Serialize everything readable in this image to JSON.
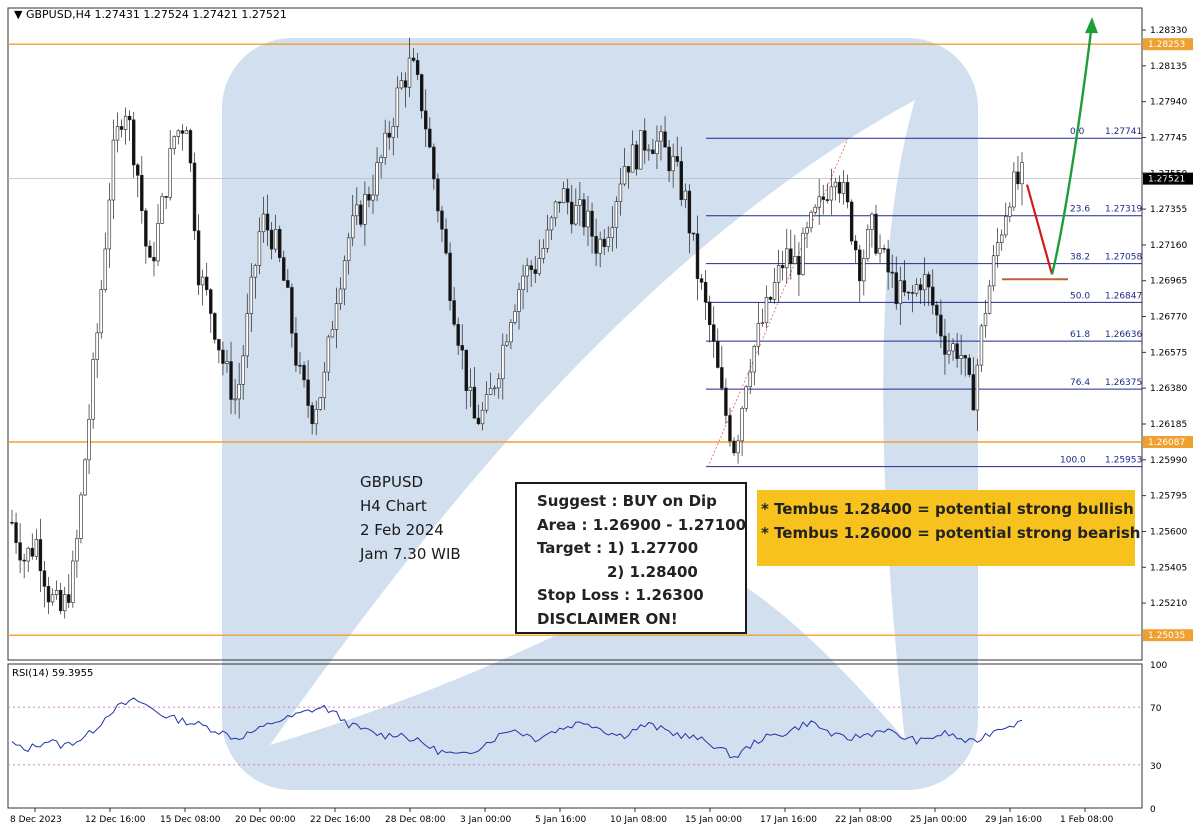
{
  "header": {
    "symbol_line": "GBPUSD,H4  1.27431 1.27524 1.27421 1.27521"
  },
  "info_box": {
    "lines": [
      "GBPUSD",
      "H4 Chart",
      "2 Feb 2024",
      "Jam 7.30 WIB"
    ]
  },
  "suggest_box": {
    "line1": "Suggest : BUY on Dip",
    "line2": "Area : 1.26900 - 1.27100",
    "line3": "Target : 1) 1.27700",
    "line4": "2) 1.28400",
    "line5": "Stop Loss : 1.26300",
    "line6": "DISCLAIMER ON!"
  },
  "tembus_box": {
    "line1": "* Tembus 1.28400 = potential strong bullish",
    "line2": "* Tembus 1.26000 = potential strong bearish"
  },
  "rsi": {
    "label": "RSI(14) 59.3955",
    "levels": [
      70,
      30
    ],
    "ticks": [
      "100",
      "70",
      "30",
      "0"
    ]
  },
  "colors": {
    "sr_line": "#f0a030",
    "fib_line": "#1f2a8a",
    "rsi_line": "#2233aa",
    "watermark": "#c9d9ec",
    "bull_arrow": "#1e9e3a",
    "bear_arrow": "#d11a1a"
  },
  "chart_data": {
    "type": "candlestick",
    "symbol": "GBPUSD",
    "timeframe": "H4",
    "ylim": [
      1.249,
      1.2845
    ],
    "price_ticks": [
      "1.28330",
      "1.28135",
      "1.27940",
      "1.27745",
      "1.27550",
      "1.27355",
      "1.27160",
      "1.26965",
      "1.26770",
      "1.26575",
      "1.26380",
      "1.26185",
      "1.25990",
      "1.25795",
      "1.25600",
      "1.25405",
      "1.25210"
    ],
    "x_tick_labels": [
      "8 Dec 2023",
      "12 Dec 16:00",
      "15 Dec 08:00",
      "20 Dec 00:00",
      "22 Dec 16:00",
      "28 Dec 08:00",
      "3 Jan 00:00",
      "5 Jan 16:00",
      "10 Jan 08:00",
      "15 Jan 00:00",
      "17 Jan 16:00",
      "22 Jan 08:00",
      "25 Jan 00:00",
      "29 Jan 16:00",
      "1 Feb 08:00"
    ],
    "current_price": "1.27521",
    "sr_levels": [
      {
        "value": 1.28253,
        "label": "1.28253"
      },
      {
        "value": 1.26087,
        "label": "1.26087"
      },
      {
        "value": 1.25035,
        "label": "1.25035"
      }
    ],
    "fibonacci": [
      {
        "ratio": "0.0",
        "value": "1.27741"
      },
      {
        "ratio": "23.6",
        "value": "1.27319"
      },
      {
        "ratio": "38.2",
        "value": "1.27058"
      },
      {
        "ratio": "50.0",
        "value": "1.26847"
      },
      {
        "ratio": "61.8",
        "value": "1.26636"
      },
      {
        "ratio": "76.4",
        "value": "1.26375"
      },
      {
        "ratio": "100.0",
        "value": "1.25953"
      }
    ],
    "price_path": [
      1.2565,
      1.2545,
      1.2555,
      1.2525,
      1.2515,
      1.254,
      1.261,
      1.268,
      1.276,
      1.2795,
      1.276,
      1.27,
      1.2735,
      1.2775,
      1.2785,
      1.27,
      1.268,
      1.265,
      1.263,
      1.268,
      1.273,
      1.272,
      1.269,
      1.2645,
      1.2625,
      1.264,
      1.269,
      1.272,
      1.2735,
      1.275,
      1.277,
      1.28,
      1.2815,
      1.279,
      1.2745,
      1.27,
      1.266,
      1.262,
      1.2625,
      1.265,
      1.268,
      1.27,
      1.2705,
      1.272,
      1.2745,
      1.2735,
      1.273,
      1.2715,
      1.273,
      1.276,
      1.2765,
      1.2775,
      1.277,
      1.276,
      1.274,
      1.27,
      1.267,
      1.263,
      1.2605,
      1.265,
      1.267,
      1.269,
      1.271,
      1.2705,
      1.2725,
      1.274,
      1.276,
      1.2735,
      1.2705,
      1.2725,
      1.2705,
      1.269,
      1.2685,
      1.27,
      1.268,
      1.266,
      1.266,
      1.263,
      1.268,
      1.2715,
      1.2745,
      1.2752
    ],
    "rsi_path": [
      45,
      40,
      44,
      47,
      43,
      46,
      50,
      58,
      68,
      72,
      75,
      70,
      65,
      62,
      60,
      58,
      55,
      52,
      48,
      52,
      55,
      60,
      62,
      65,
      68,
      70,
      65,
      58,
      55,
      52,
      50,
      52,
      48,
      45,
      40,
      38,
      36,
      40,
      45,
      50,
      55,
      52,
      48,
      52,
      55,
      58,
      60,
      56,
      52,
      50,
      55,
      58,
      55,
      52,
      50,
      48,
      45,
      40,
      35,
      42,
      48,
      50,
      52,
      56,
      60,
      55,
      50,
      48,
      50,
      52,
      55,
      50,
      48,
      46,
      50,
      52,
      48,
      45,
      50,
      55,
      58,
      59.4
    ],
    "forecast": {
      "pullback_to": 1.27,
      "target": 1.284
    }
  }
}
